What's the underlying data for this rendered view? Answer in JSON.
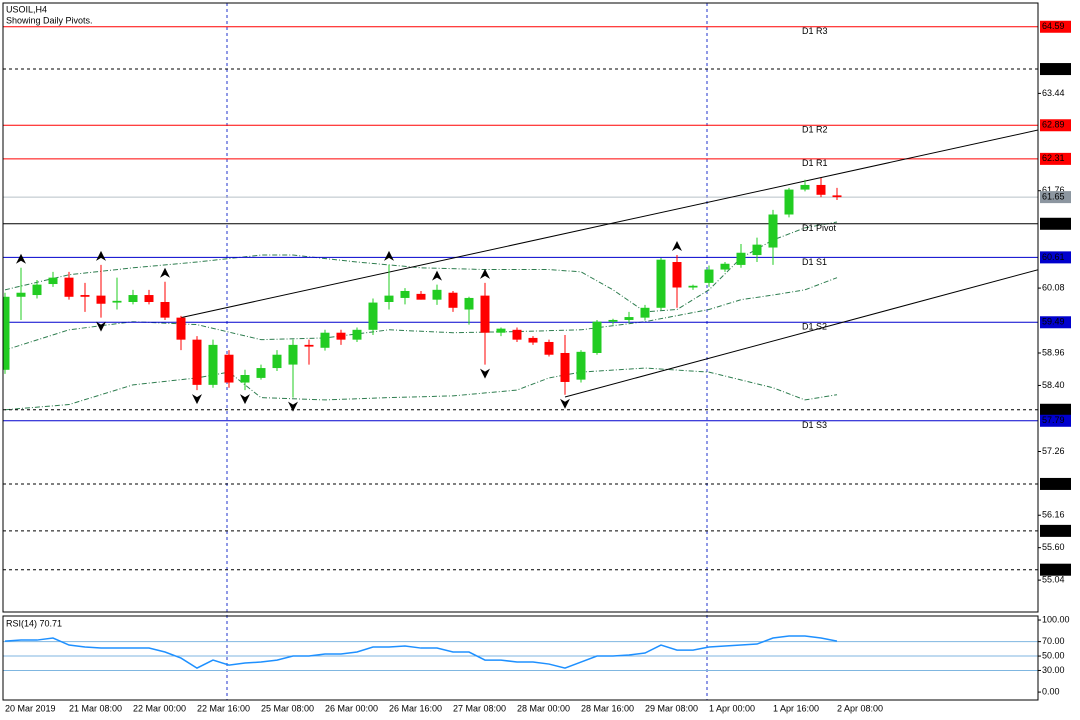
{
  "title": "USOIL,H4",
  "subtitle": "Showing Daily Pivots.",
  "chart_data": [
    {
      "type": "candlestick",
      "categories": [
        "20 Mar 2019",
        null,
        null,
        null,
        "21 Mar 08:00",
        null,
        null,
        null,
        "22 Mar 00:00",
        null,
        null,
        null,
        "22 Mar 16:00",
        null,
        null,
        null,
        "25 Mar 08:00",
        null,
        null,
        null,
        "26 Mar 00:00",
        null,
        null,
        null,
        "26 Mar 16:00",
        null,
        null,
        null,
        "27 Mar 08:00",
        null,
        null,
        null,
        "28 Mar 00:00",
        null,
        null,
        null,
        "28 Mar 16:00",
        null,
        null,
        null,
        "29 Mar 08:00",
        null,
        null,
        null,
        "1 Apr 00:00",
        null,
        null,
        null,
        "1 Apr 16:00",
        null,
        null,
        null,
        "2 Apr 08:00"
      ],
      "open": [
        58.67,
        59.93,
        59.96,
        60.15,
        60.26,
        59.96,
        59.95,
        59.83,
        59.84,
        59.96,
        59.84,
        59.57,
        59.19,
        58.41,
        58.93,
        58.45,
        58.53,
        58.7,
        58.76,
        59.1,
        59.05,
        59.31,
        59.19,
        59.36,
        59.84,
        59.91,
        59.98,
        59.88,
        60.0,
        59.71,
        59.95,
        59.31,
        59.36,
        59.22,
        59.15,
        58.96,
        58.5,
        58.96,
        59.5,
        59.53,
        59.57,
        59.74,
        60.53,
        60.09,
        60.17,
        60.4,
        60.48,
        60.65,
        60.78,
        61.35,
        61.78,
        61.86,
        61.68
      ],
      "high": [
        60.0,
        60.43,
        60.22,
        60.36,
        60.36,
        60.17,
        60.48,
        60.26,
        60.05,
        60.05,
        60.19,
        59.6,
        59.25,
        59.19,
        59.01,
        58.67,
        58.76,
        59.01,
        59.19,
        59.19,
        59.36,
        59.36,
        59.4,
        59.9,
        60.48,
        60.08,
        60.03,
        60.14,
        60.03,
        59.93,
        60.17,
        59.4,
        59.4,
        59.25,
        59.19,
        59.27,
        59.01,
        59.53,
        59.55,
        59.67,
        59.79,
        60.6,
        60.65,
        60.14,
        60.47,
        60.53,
        60.84,
        60.95,
        61.43,
        61.81,
        61.95,
        61.98,
        61.81
      ],
      "low": [
        58.6,
        59.53,
        59.9,
        60.1,
        59.88,
        59.67,
        59.57,
        59.71,
        59.8,
        59.8,
        59.53,
        59.01,
        58.32,
        58.36,
        58.36,
        58.32,
        58.5,
        58.65,
        58.19,
        58.76,
        59.0,
        59.1,
        59.15,
        59.27,
        59.71,
        59.8,
        59.88,
        59.79,
        59.67,
        59.45,
        58.76,
        59.25,
        59.15,
        59.1,
        58.9,
        58.24,
        58.45,
        58.93,
        59.45,
        59.48,
        59.52,
        59.7,
        59.74,
        60.05,
        60.1,
        60.36,
        60.43,
        60.53,
        60.48,
        61.3,
        61.75,
        61.65,
        61.6
      ],
      "close": [
        59.93,
        60.0,
        60.14,
        60.26,
        59.93,
        59.93,
        59.81,
        59.86,
        59.96,
        59.84,
        59.57,
        59.19,
        58.41,
        59.1,
        58.45,
        58.58,
        58.7,
        58.93,
        59.1,
        59.07,
        59.31,
        59.19,
        59.36,
        59.83,
        59.95,
        60.03,
        59.88,
        60.05,
        59.74,
        59.91,
        59.31,
        59.38,
        59.19,
        59.14,
        58.93,
        58.46,
        58.98,
        59.5,
        59.53,
        59.58,
        59.74,
        60.57,
        60.09,
        60.12,
        60.4,
        60.5,
        60.69,
        60.83,
        61.35,
        61.78,
        61.86,
        61.69,
        61.65
      ],
      "up_color": "#22cc22",
      "down_color": "#ff0000",
      "ylim": [
        54.49,
        65.0
      ],
      "yticks": [
        63.44,
        61.76,
        60.08,
        58.96,
        {
          "value": 58.4,
          "label": "58.40"
        },
        57.26,
        56.16,
        {
          "value": 55.6,
          "label": "55.60"
        },
        55.04
      ],
      "levels": [
        {
          "price": 64.59,
          "name": "D1 R3",
          "color": "#ff0000",
          "style": "solid"
        },
        {
          "price": 63.86,
          "color": "#000000",
          "style": "dashed"
        },
        {
          "price": 62.89,
          "name": "D1 R2",
          "color": "#ff0000",
          "style": "solid"
        },
        {
          "price": 62.31,
          "name": "D1 R1",
          "color": "#ff0000",
          "style": "solid"
        },
        {
          "price": 61.19,
          "name": "D1 Pivot",
          "color": "#000000",
          "style": "solid"
        },
        {
          "price": 60.61,
          "name": "D1 S1",
          "color": "#0000cd",
          "style": "solid"
        },
        {
          "price": 59.49,
          "name": "D1 S2",
          "color": "#0000cd",
          "style": "solid"
        },
        {
          "price": 57.98,
          "color": "#000000",
          "style": "dashed"
        },
        {
          "price": 57.79,
          "name": "D1 S3",
          "color": "#0000cd",
          "style": "solid"
        },
        {
          "price": {
            "value": 56.7,
            "label": "56.70"
          },
          "color": "#000000",
          "style": "dashed"
        },
        {
          "price": 55.89,
          "color": "#000000",
          "style": "dashed"
        },
        {
          "price": 55.22,
          "color": "#000000",
          "style": "dashed"
        }
      ],
      "current_price": 61.65,
      "current_color": "#8c96a0",
      "bands": [
        {
          "color": "#2e7d4f",
          "x": [
            0,
            4,
            8,
            12,
            16,
            18,
            22,
            26,
            30,
            34,
            36,
            38,
            40,
            42,
            44,
            46,
            48,
            50,
            52
          ],
          "values": [
            60.05,
            60.31,
            60.43,
            60.53,
            60.65,
            60.65,
            60.53,
            60.43,
            60.4,
            60.4,
            60.36,
            60.05,
            59.67,
            59.71,
            60.05,
            60.6,
            60.91,
            61.12,
            61.22
          ]
        },
        {
          "color": "#2e7d4f",
          "x": [
            0,
            4,
            8,
            12,
            16,
            20,
            24,
            28,
            32,
            36,
            40,
            44,
            46,
            48,
            50,
            52
          ],
          "values": [
            59.01,
            59.36,
            59.5,
            59.45,
            59.19,
            59.22,
            59.36,
            59.31,
            59.33,
            59.36,
            59.5,
            59.71,
            59.88,
            59.96,
            60.05,
            60.26
          ]
        },
        {
          "color": "#2e7d4f",
          "x": [
            0,
            4,
            8,
            12,
            14,
            16,
            20,
            24,
            28,
            32,
            34,
            36,
            40,
            44,
            48,
            50,
            52
          ],
          "values": [
            57.98,
            58.07,
            58.41,
            58.53,
            58.63,
            58.19,
            58.15,
            58.19,
            58.22,
            58.32,
            58.53,
            58.63,
            58.7,
            58.63,
            58.36,
            58.15,
            58.24
          ]
        }
      ],
      "trendlines": [
        {
          "x": [
            11,
            64.6
          ],
          "values": [
            59.57,
            62.81
          ]
        },
        {
          "x": [
            35,
            64.6
          ],
          "values": [
            58.2,
            60.4
          ]
        }
      ],
      "fractals_up": [
        1,
        6,
        10,
        24,
        27,
        30,
        42
      ],
      "fractals_down": [
        6,
        12,
        15,
        18,
        30,
        35
      ]
    },
    {
      "type": "line",
      "title": "RSI(14) 70.71",
      "values": [
        70.8,
        72.2,
        72.2,
        75.0,
        65.3,
        62.5,
        61.1,
        61.1,
        61.1,
        61.1,
        55.6,
        47.2,
        33.3,
        44.4,
        37.5,
        40.3,
        41.7,
        44.4,
        50.0,
        50.0,
        52.8,
        52.8,
        55.6,
        62.5,
        62.5,
        63.9,
        61.1,
        61.1,
        55.6,
        55.6,
        44.4,
        44.4,
        41.7,
        41.7,
        38.9,
        33.3,
        41.7,
        50.0,
        50.0,
        51.4,
        54.2,
        65.3,
        58.3,
        58.3,
        62.5,
        63.9,
        65.3,
        66.7,
        75.0,
        77.8,
        77.8,
        75.0,
        70.71
      ],
      "color": "#1e90ff",
      "ylim": [
        -11,
        105.6
      ],
      "yticks": [
        {
          "value": 100,
          "label": "100.00"
        },
        {
          "value": 70,
          "label": "70.00"
        },
        {
          "value": 50,
          "label": "50.00"
        },
        {
          "value": 30,
          "label": "30.00"
        },
        {
          "value": 0,
          "label": "0.00"
        }
      ],
      "levels": [
        70,
        50,
        30
      ],
      "level_color": "#7fb6e0"
    }
  ]
}
